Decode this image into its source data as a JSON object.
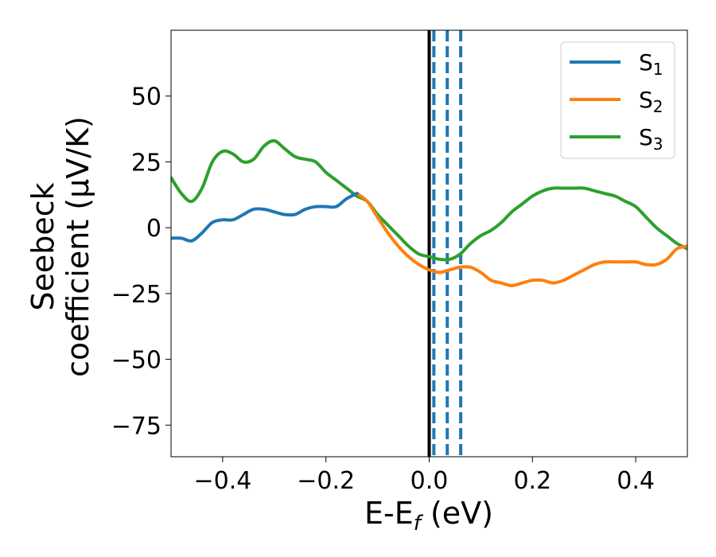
{
  "chart_data": {
    "type": "line",
    "xlabel": {
      "main": "E-E",
      "sub": "f",
      "unit": " (eV)"
    },
    "ylabel": {
      "line1": "Seebeck",
      "line2": "coefficient  (μV/K)"
    },
    "xlim": [
      -0.5,
      0.5
    ],
    "ylim": [
      -87,
      75
    ],
    "xticks": [
      {
        "value": -0.4,
        "label": "−0.4"
      },
      {
        "value": -0.2,
        "label": "−0.2"
      },
      {
        "value": 0.0,
        "label": "0.0"
      },
      {
        "value": 0.2,
        "label": "0.2"
      },
      {
        "value": 0.4,
        "label": "0.4"
      }
    ],
    "yticks": [
      {
        "value": 50,
        "label": "50"
      },
      {
        "value": 25,
        "label": "25"
      },
      {
        "value": 0,
        "label": "0"
      },
      {
        "value": -25,
        "label": "−25"
      },
      {
        "value": -50,
        "label": "−50"
      },
      {
        "value": -75,
        "label": "−75"
      }
    ],
    "grid": false,
    "legend_position": "top-right",
    "series": [
      {
        "name": "S",
        "sub": "1",
        "color": "#1f77b4",
        "x": [
          -0.5,
          -0.48,
          -0.46,
          -0.44,
          -0.42,
          -0.4,
          -0.38,
          -0.36,
          -0.34,
          -0.32,
          -0.3,
          -0.28,
          -0.26,
          -0.24,
          -0.22,
          -0.2,
          -0.18,
          -0.16,
          -0.14
        ],
        "y": [
          -4,
          -4,
          -5,
          -2,
          2,
          3,
          3,
          5,
          7,
          7,
          6,
          5,
          5,
          7,
          8,
          8,
          8,
          11,
          13
        ]
      },
      {
        "name": "S",
        "sub": "2",
        "color": "#ff7f0e",
        "x": [
          -0.14,
          -0.12,
          -0.1,
          -0.08,
          -0.06,
          -0.04,
          -0.02,
          0.0,
          0.02,
          0.04,
          0.06,
          0.08,
          0.1,
          0.12,
          0.14,
          0.16,
          0.18,
          0.2,
          0.22,
          0.24,
          0.26,
          0.28,
          0.3,
          0.32,
          0.34,
          0.36,
          0.38,
          0.4,
          0.42,
          0.44,
          0.46,
          0.48,
          0.5
        ],
        "y": [
          13,
          10,
          4,
          -2,
          -7,
          -11,
          -14,
          -16,
          -17,
          -16,
          -15,
          -15,
          -17,
          -20,
          -21,
          -22,
          -21,
          -20,
          -20,
          -21,
          -20,
          -18,
          -16,
          -14,
          -13,
          -13,
          -13,
          -13,
          -14,
          -14,
          -12,
          -8,
          -7
        ]
      },
      {
        "name": "S",
        "sub": "3",
        "color": "#2ca02c",
        "x": [
          -0.5,
          -0.48,
          -0.46,
          -0.44,
          -0.42,
          -0.4,
          -0.38,
          -0.36,
          -0.34,
          -0.32,
          -0.3,
          -0.28,
          -0.26,
          -0.24,
          -0.22,
          -0.2,
          -0.18,
          -0.16,
          -0.14,
          -0.12,
          -0.1,
          -0.08,
          -0.06,
          -0.04,
          -0.02,
          0.0,
          0.02,
          0.04,
          0.06,
          0.08,
          0.1,
          0.12,
          0.14,
          0.16,
          0.18,
          0.2,
          0.22,
          0.24,
          0.26,
          0.28,
          0.3,
          0.32,
          0.34,
          0.36,
          0.38,
          0.4,
          0.42,
          0.44,
          0.46,
          0.48,
          0.5
        ],
        "y": [
          19,
          13,
          10,
          15,
          25,
          29,
          28,
          25,
          26,
          31,
          33,
          30,
          27,
          26,
          25,
          21,
          18,
          15,
          12,
          10,
          5,
          1,
          -3,
          -7,
          -10,
          -11,
          -12,
          -12,
          -10,
          -6,
          -3,
          -1,
          2,
          6,
          9,
          12,
          14,
          15,
          15,
          15,
          15,
          14,
          13,
          12,
          10,
          8,
          4,
          0,
          -3,
          -6,
          -8
        ]
      }
    ],
    "vertical_lines": [
      {
        "x": 0.0,
        "style": "solid",
        "color": "#000000"
      },
      {
        "x": 0.009,
        "style": "dashed",
        "color": "#1f77b4"
      },
      {
        "x": 0.035,
        "style": "dashed",
        "color": "#1f77b4"
      },
      {
        "x": 0.061,
        "style": "dashed",
        "color": "#1f77b4"
      }
    ]
  }
}
